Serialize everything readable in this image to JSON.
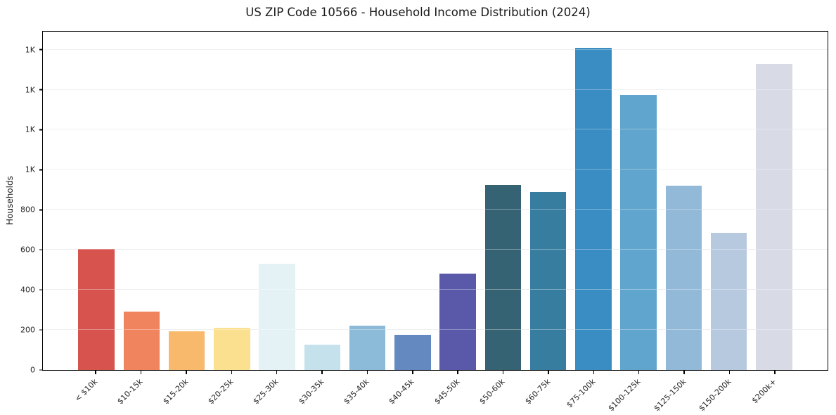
{
  "chart_data": {
    "type": "bar",
    "title": "US ZIP Code 10566 - Household Income Distribution (2024)",
    "xlabel": "",
    "ylabel": "Households",
    "grid": true,
    "legend": "none",
    "ylim": [
      0,
      1690
    ],
    "categories": [
      "< $10k",
      "$10-15k",
      "$15-20k",
      "$20-25k",
      "$25-30k",
      "$30-35k",
      "$35-40k",
      "$40-45k",
      "$45-50k",
      "$50-60k",
      "$60-75k",
      "$75-100k",
      "$100-125k",
      "$125-150k",
      "$150-200k",
      "$200k+"
    ],
    "values": [
      605,
      290,
      195,
      210,
      530,
      125,
      220,
      175,
      480,
      925,
      890,
      1610,
      1375,
      920,
      685,
      1530
    ],
    "bar_colors": [
      "#d6534e",
      "#f0845e",
      "#f8b96d",
      "#fbe08f",
      "#e5f2f5",
      "#c4e1ec",
      "#8cbad9",
      "#6489c1",
      "#5a58a8",
      "#366373",
      "#377d9f",
      "#3a8dc3",
      "#60a5cd",
      "#93b9d8",
      "#b7c9df",
      "#d8dae6"
    ],
    "yticks": [
      {
        "value": 0,
        "label": "0"
      },
      {
        "value": 200,
        "label": "200"
      },
      {
        "value": 400,
        "label": "400"
      },
      {
        "value": 600,
        "label": "600"
      },
      {
        "value": 800,
        "label": "800"
      },
      {
        "value": 1000,
        "label": "1K"
      },
      {
        "value": 1200,
        "label": "1K"
      },
      {
        "value": 1400,
        "label": "1K"
      },
      {
        "value": 1600,
        "label": "1K"
      }
    ]
  }
}
